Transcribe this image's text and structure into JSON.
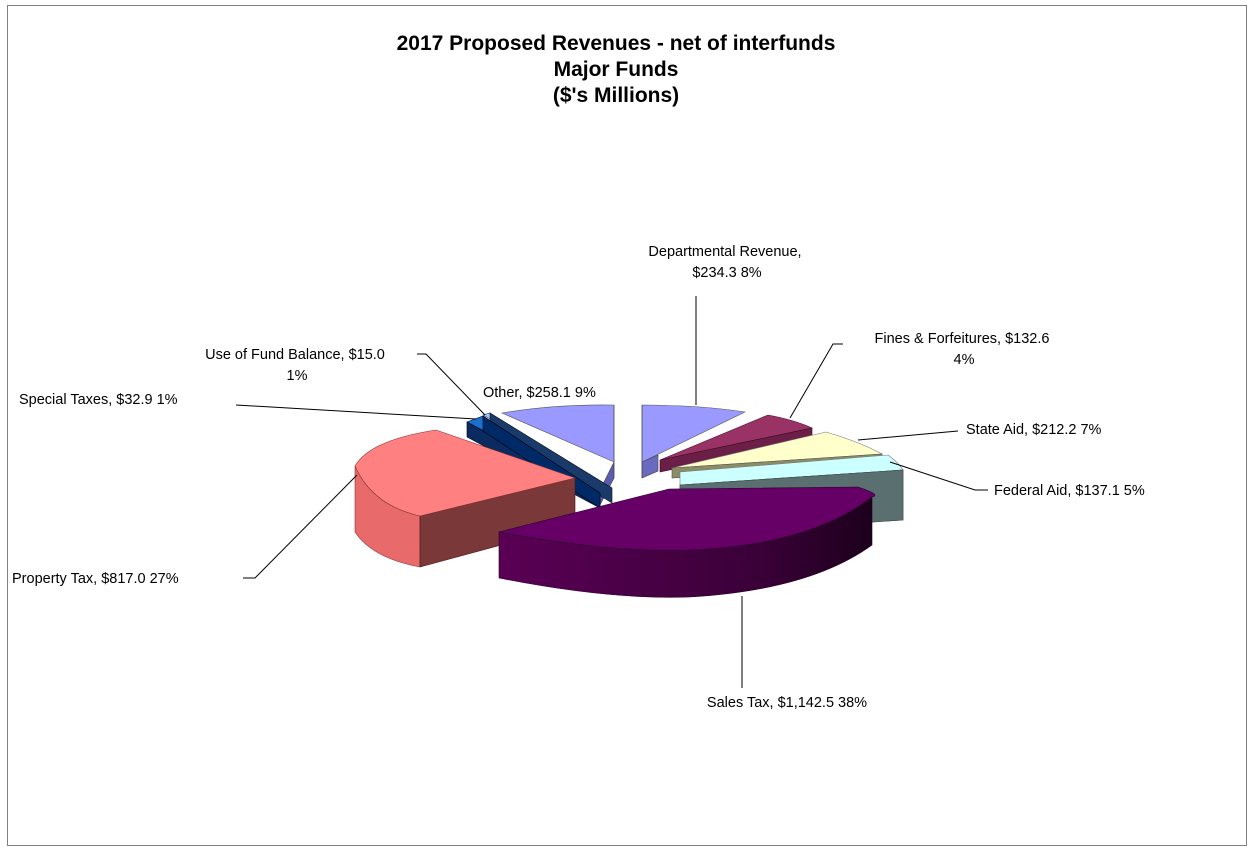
{
  "chart_data": {
    "type": "pie",
    "title_lines": [
      "2017 Proposed Revenues - net of interfunds",
      "Major Funds",
      "($'s Millions)"
    ],
    "slices": [
      {
        "name": "Departmental Revenue",
        "value": 234.3,
        "percent": "8%",
        "label_lines": [
          "Departmental Revenue,",
          "$234.3  8%"
        ],
        "color": "#9999ff"
      },
      {
        "name": "Fines & Forfeitures",
        "value": 132.6,
        "percent": "4%",
        "label_lines": [
          "Fines & Forfeitures,  $132.6",
          "4%"
        ],
        "color": "#993366"
      },
      {
        "name": "State Aid",
        "value": 212.2,
        "percent": "7%",
        "label_lines": [
          "State Aid,  $212.2   7%"
        ],
        "color": "#ffffcc"
      },
      {
        "name": "Federal Aid",
        "value": 137.1,
        "percent": "5%",
        "label_lines": [
          "Federal Aid,  $137.1   5%"
        ],
        "color": "#ccffff"
      },
      {
        "name": "Sales Tax",
        "value": 1142.5,
        "percent": "38%",
        "label_lines": [
          "Sales Tax,  $1,142.5  38%"
        ],
        "color": "#660066"
      },
      {
        "name": "Property Tax",
        "value": 817.0,
        "percent": "27%",
        "label_lines": [
          "Property Tax,  $817.0  27%"
        ],
        "color": "#ff8080"
      },
      {
        "name": "Special Taxes",
        "value": 32.9,
        "percent": "1%",
        "label_lines": [
          "Special Taxes,  $32.9  1%"
        ],
        "color": "#0066cc"
      },
      {
        "name": "Use of Fund Balance",
        "value": 15.0,
        "percent": "1%",
        "label_lines": [
          "Use of Fund Balance,  $15.0",
          "1%"
        ],
        "color": "#99ccff"
      },
      {
        "name": "Other",
        "value": 258.1,
        "percent": "9%",
        "label_lines": [
          "Other,  $258.1  9%"
        ],
        "color": "#9999ff"
      }
    ]
  }
}
